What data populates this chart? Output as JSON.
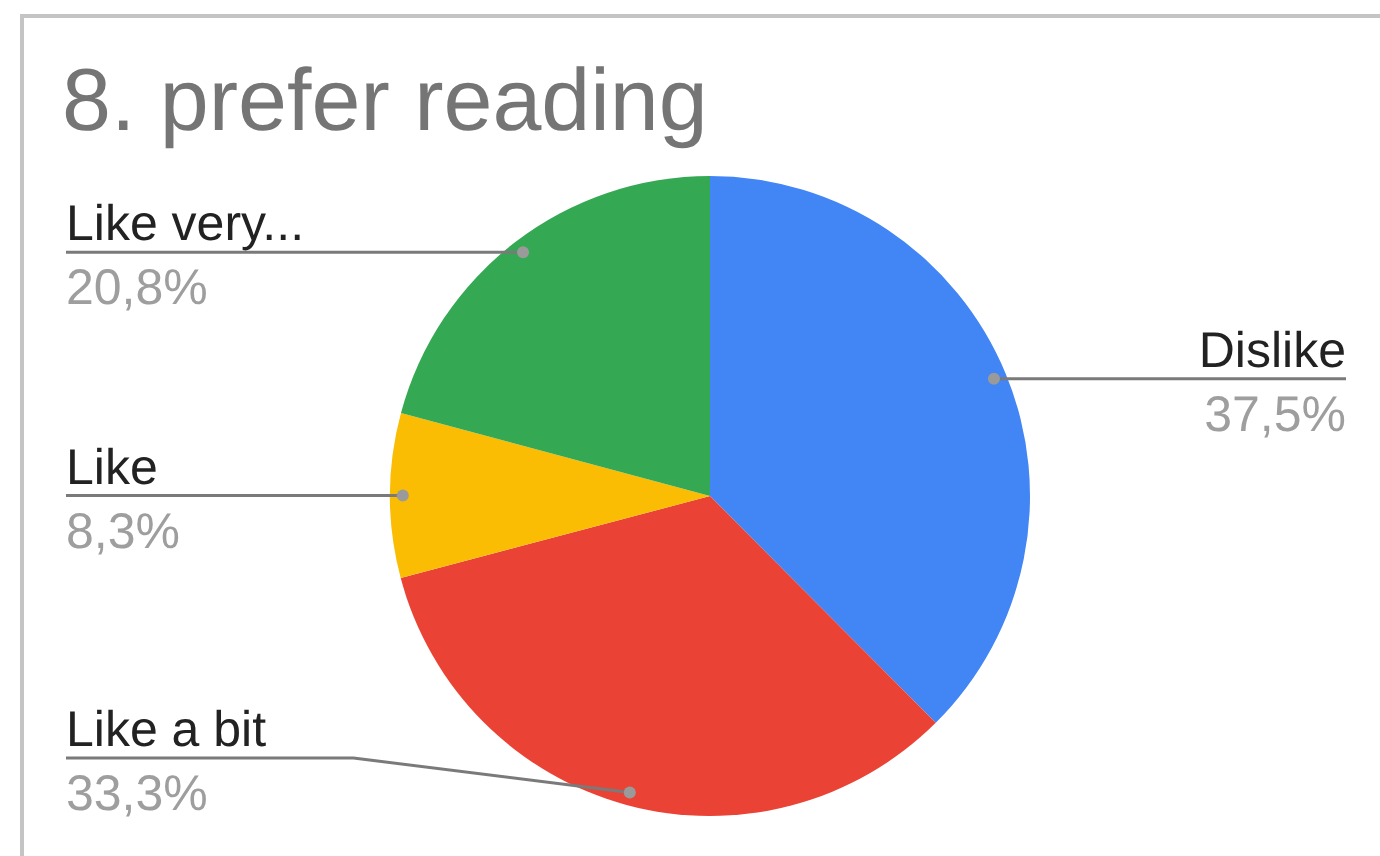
{
  "chart_data": {
    "type": "pie",
    "title": "8. prefer reading",
    "categories": [
      "Dislike",
      "Like a bit",
      "Like",
      "Like very..."
    ],
    "values": [
      37.5,
      33.3,
      8.3,
      20.8
    ],
    "colors": [
      "#4285f4",
      "#ea4335",
      "#fbbc04",
      "#34a853"
    ],
    "value_labels": [
      "37,5%",
      "33,3%",
      "8,3%",
      "20,8%"
    ]
  }
}
